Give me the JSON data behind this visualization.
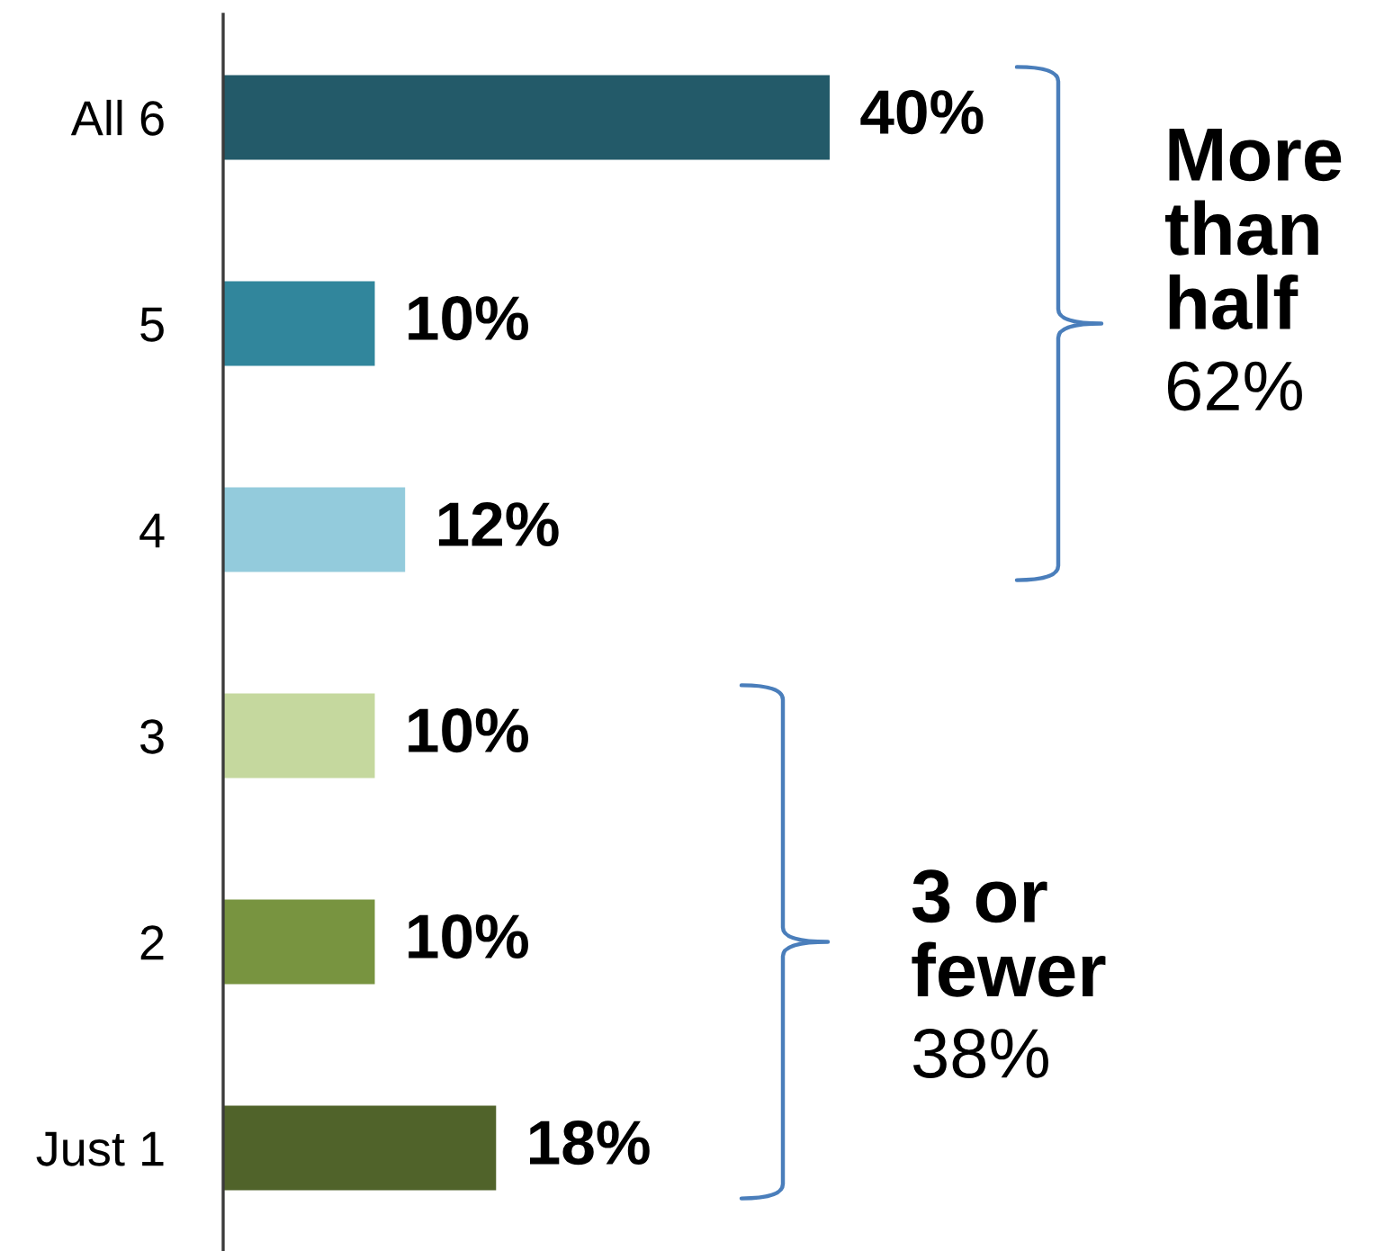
{
  "chart_data": {
    "type": "bar",
    "orientation": "horizontal",
    "categories": [
      "All 6",
      "5",
      "4",
      "3",
      "2",
      "Just 1"
    ],
    "values": [
      40,
      10,
      12,
      10,
      10,
      18
    ],
    "colors": [
      "#235a69",
      "#31869c",
      "#93cbdc",
      "#c5d89e",
      "#789440",
      "#50632a"
    ],
    "value_labels": [
      "40%",
      "10%",
      "12%",
      "10%",
      "10%",
      "18%"
    ],
    "tick_labels": "y",
    "annotations": [
      "More\nthan\nhalf",
      "62%",
      "3 or\nfewer",
      "38%"
    ]
  }
}
